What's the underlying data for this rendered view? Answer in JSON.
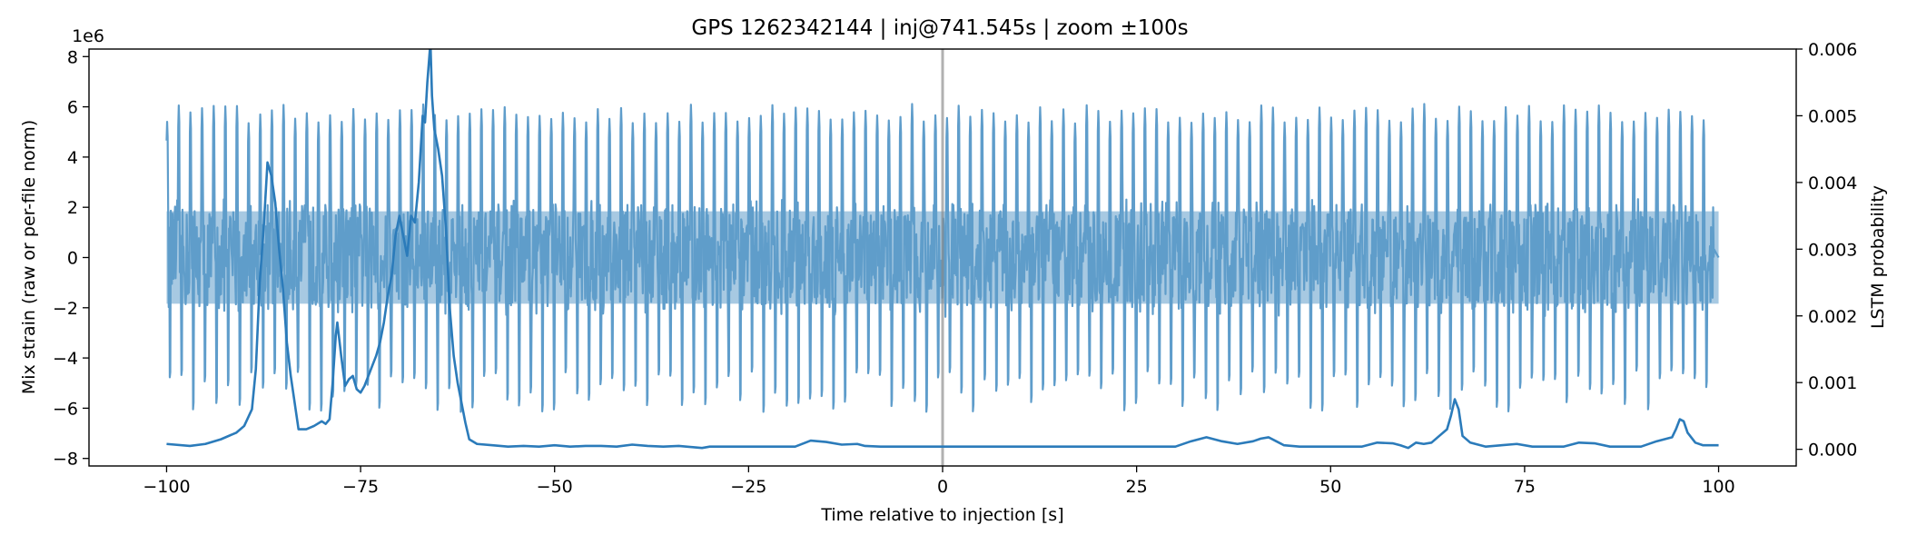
{
  "chart_data": {
    "type": "line",
    "title": "GPS 1262342144 | inj@741.545s | zoom ±100s",
    "xlabel": "Time relative to injection [s]",
    "ylabel_left": "Mix strain (raw or per-file norm)",
    "ylabel_right": "LSTM probability",
    "left_axis_scale_label": "1e6",
    "left_axis_scale": 1000000,
    "xlim": [
      -110,
      110
    ],
    "ylim_left": [
      -8.3,
      8.3
    ],
    "ylim_right": [
      -0.00025,
      0.006
    ],
    "x_ticks": [
      -100,
      -75,
      -50,
      -25,
      0,
      25,
      50,
      75,
      100
    ],
    "x_tick_labels": [
      "−100",
      "−75",
      "−50",
      "−25",
      "0",
      "25",
      "50",
      "75",
      "100"
    ],
    "y_left_ticks": [
      8,
      6,
      4,
      2,
      0,
      -2,
      -4,
      -6,
      -8
    ],
    "y_left_tick_labels": [
      "8",
      "6",
      "4",
      "2",
      "0",
      "−2",
      "−4",
      "−6",
      "−8"
    ],
    "y_right_ticks": [
      0.006,
      0.005,
      0.004,
      0.003,
      0.002,
      0.001,
      0.0
    ],
    "y_right_tick_labels": [
      "0.006",
      "0.005",
      "0.004",
      "0.003",
      "0.002",
      "0.001",
      "0.000"
    ],
    "injection_marker_x": 0,
    "strain_series": {
      "name": "Mix strain",
      "color": "#5f9dcb",
      "x_range": [
        -100,
        100
      ],
      "core_band": [
        -2.0,
        2.0
      ],
      "positive_peaks_approx": [
        5.4,
        6.2
      ],
      "negative_troughs_approx": [
        -6.6,
        -4.8
      ],
      "max_peak_approx": 6.6,
      "min_trough_approx": -7.0
    },
    "probability_series": {
      "name": "LSTM probability",
      "color": "#2b7bba",
      "x": [
        -100,
        -97,
        -95,
        -93,
        -91,
        -90,
        -89,
        -88.5,
        -88,
        -87.5,
        -87,
        -86.5,
        -86,
        -85.5,
        -85,
        -84.5,
        -84,
        -83,
        -82,
        -81,
        -80,
        -79.5,
        -79,
        -78.6,
        -78.2,
        -78,
        -77.5,
        -77,
        -76.5,
        -76,
        -75.5,
        -75,
        -74.5,
        -74,
        -73.5,
        -73,
        -72.5,
        -72,
        -71.5,
        -71,
        -70.5,
        -70,
        -69.5,
        -69,
        -68.5,
        -68,
        -67.5,
        -67,
        -66.7,
        -66.4,
        -66,
        -65.8,
        -65.5,
        -65,
        -64.5,
        -64,
        -63.5,
        -63,
        -62.5,
        -62,
        -61.5,
        -61,
        -60,
        -58,
        -56,
        -54,
        -52,
        -50,
        -48,
        -46,
        -44,
        -42,
        -40,
        -38,
        -36,
        -34,
        -32,
        -31,
        -30,
        -28,
        -26,
        -24,
        -22,
        -20,
        -19,
        -17,
        -15,
        -13,
        -11,
        -10,
        -8,
        -6,
        -4,
        -2,
        0,
        2,
        4,
        6,
        8,
        10,
        15,
        20,
        25,
        30,
        32,
        34,
        36,
        38,
        40,
        41,
        42,
        43,
        44,
        46,
        48,
        50,
        52,
        54,
        56,
        58,
        59,
        60,
        61,
        62,
        63,
        64,
        65,
        65.5,
        66,
        66.5,
        67,
        68,
        70,
        72,
        74,
        76,
        78,
        80,
        82,
        84,
        86,
        88,
        90,
        92,
        93,
        94,
        94.5,
        95,
        95.5,
        96,
        97,
        98,
        100
      ],
      "y": [
        8e-05,
        5e-05,
        8e-05,
        0.00015,
        0.00025,
        0.00035,
        0.0006,
        0.0012,
        0.0025,
        0.0033,
        0.0043,
        0.0041,
        0.0037,
        0.003,
        0.0024,
        0.0016,
        0.0011,
        0.0003,
        0.0003,
        0.00035,
        0.00042,
        0.00038,
        0.00045,
        0.001,
        0.0017,
        0.0019,
        0.0014,
        0.00095,
        0.00105,
        0.0011,
        0.0009,
        0.00085,
        0.00095,
        0.0011,
        0.00125,
        0.0014,
        0.0016,
        0.0019,
        0.0023,
        0.0026,
        0.0032,
        0.0035,
        0.0032,
        0.0029,
        0.0035,
        0.0034,
        0.004,
        0.005,
        0.0049,
        0.0055,
        0.0061,
        0.0053,
        0.0048,
        0.0045,
        0.0041,
        0.0033,
        0.0021,
        0.0014,
        0.001,
        0.0007,
        0.0004,
        0.00015,
        8e-05,
        6e-05,
        4e-05,
        5e-05,
        4e-05,
        6e-05,
        4e-05,
        5e-05,
        5e-05,
        4e-05,
        7e-05,
        5e-05,
        4e-05,
        5e-05,
        3e-05,
        2e-05,
        4e-05,
        4e-05,
        4e-05,
        4e-05,
        4e-05,
        4e-05,
        4e-05,
        0.00013,
        0.00011,
        7e-05,
        8e-05,
        5e-05,
        4e-05,
        4e-05,
        4e-05,
        4e-05,
        4e-05,
        4e-05,
        4e-05,
        4e-05,
        4e-05,
        4e-05,
        4e-05,
        4e-05,
        4e-05,
        4e-05,
        0.00012,
        0.00018,
        0.00012,
        8e-05,
        0.00012,
        0.00016,
        0.00018,
        0.00012,
        6e-05,
        4e-05,
        4e-05,
        4e-05,
        4e-05,
        4e-05,
        0.0001,
        9e-05,
        6e-05,
        2e-05,
        0.0001,
        8e-05,
        0.0001,
        0.0002,
        0.0003,
        0.0005,
        0.00075,
        0.0006,
        0.0002,
        0.0001,
        4e-05,
        6e-05,
        8e-05,
        4e-05,
        4e-05,
        4e-05,
        0.0001,
        9e-05,
        4e-05,
        4e-05,
        4e-05,
        0.00012,
        0.00015,
        0.00018,
        0.0003,
        0.00045,
        0.00042,
        0.00025,
        0.0001,
        6e-05,
        6e-05
      ]
    }
  }
}
